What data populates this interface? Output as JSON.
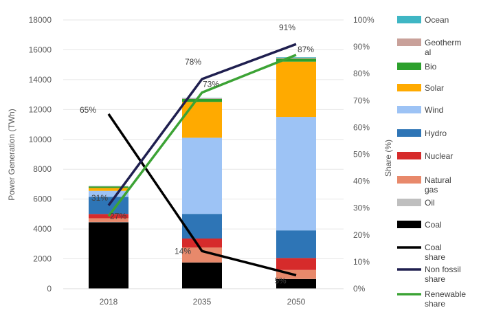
{
  "chart_data": {
    "type": "bar",
    "categories": [
      "2018",
      "2035",
      "2050"
    ],
    "ylabel": "Power Generation (TWh)",
    "y2label": "Share (%)",
    "ylim": [
      0,
      18000
    ],
    "y2lim": [
      0,
      100
    ],
    "yticks": [
      "0",
      "2000",
      "4000",
      "6000",
      "8000",
      "10000",
      "12000",
      "14000",
      "16000",
      "18000"
    ],
    "y2ticks": [
      "0%",
      "10%",
      "20%",
      "30%",
      "40%",
      "50%",
      "60%",
      "70%",
      "80%",
      "90%",
      "100%"
    ],
    "bar_series": [
      {
        "name": "Coal",
        "color": "#000000",
        "values": [
          4450,
          1750,
          650
        ]
      },
      {
        "name": "Oil",
        "color": "#bfbfbf",
        "values": [
          20,
          10,
          5
        ]
      },
      {
        "name": "Natural gas",
        "color": "#e8896b",
        "values": [
          250,
          1000,
          600
        ]
      },
      {
        "name": "Nuclear",
        "color": "#d62b2b",
        "values": [
          280,
          600,
          800
        ]
      },
      {
        "name": "Hydro",
        "color": "#2e75b6",
        "values": [
          1150,
          1650,
          1850
        ]
      },
      {
        "name": "Wind",
        "color": "#9dc3f5",
        "values": [
          400,
          5100,
          7600
        ]
      },
      {
        "name": "Solar",
        "color": "#ffaa00",
        "values": [
          200,
          2400,
          3700
        ]
      },
      {
        "name": "Bio",
        "color": "#2ca02c",
        "values": [
          100,
          200,
          200
        ]
      },
      {
        "name": "Geothermal",
        "color": "#c9a19a",
        "values": [
          20,
          40,
          60
        ]
      },
      {
        "name": "Ocean",
        "color": "#3fb6c4",
        "values": [
          10,
          20,
          40
        ]
      }
    ],
    "line_series": [
      {
        "name": "Coal share",
        "color": "#000000",
        "values": [
          65,
          14,
          5
        ],
        "labels": [
          "65%",
          "14%",
          "5%"
        ]
      },
      {
        "name": "Non fossil share",
        "color": "#1f1f4f",
        "values": [
          31,
          78,
          91
        ],
        "labels": [
          "31%",
          "78%",
          "91%"
        ]
      },
      {
        "name": "Renewable share",
        "color": "#3ca335",
        "values": [
          27,
          73,
          87
        ],
        "labels": [
          "27%",
          "73%",
          "87%"
        ]
      }
    ],
    "legend_position": "right"
  },
  "legend": [
    {
      "label": "Ocean",
      "kind": "box",
      "color": "#3fb6c4"
    },
    {
      "label": "Geothermal",
      "kind": "box",
      "color": "#c9a19a"
    },
    {
      "label": "Bio",
      "kind": "box",
      "color": "#2ca02c"
    },
    {
      "label": "Solar",
      "kind": "box",
      "color": "#ffaa00"
    },
    {
      "label": "Wind",
      "kind": "box",
      "color": "#9dc3f5"
    },
    {
      "label": "Hydro",
      "kind": "box",
      "color": "#2e75b6"
    },
    {
      "label": "Nuclear",
      "kind": "box",
      "color": "#d62b2b"
    },
    {
      "label": "Natural gas",
      "kind": "box",
      "color": "#e8896b"
    },
    {
      "label": "Oil",
      "kind": "box",
      "color": "#bfbfbf"
    },
    {
      "label": "Coal",
      "kind": "box",
      "color": "#000000"
    },
    {
      "label": "Coal share",
      "kind": "line",
      "color": "#000000"
    },
    {
      "label": "Non fossil share",
      "kind": "line",
      "color": "#1f1f4f"
    },
    {
      "label": "Renewable share",
      "kind": "line",
      "color": "#3ca335"
    }
  ]
}
